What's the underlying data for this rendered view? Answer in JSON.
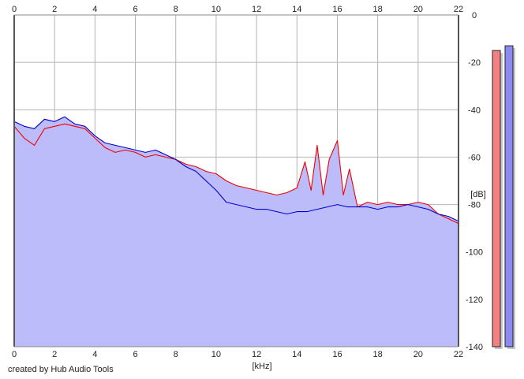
{
  "credit": "created by Hub Audio Tools",
  "colors": {
    "background": "#ffffff",
    "plot_fill": "#bcbcfa",
    "grid": "#b4b4b4",
    "series_a": "#ee0000",
    "series_b": "#0000cc",
    "meter_a": "#f28282",
    "meter_b": "#8a8af0"
  },
  "chart_data": {
    "type": "line",
    "title": "",
    "xlabel": "[kHz]",
    "ylabel": "[dB]",
    "xlim": [
      0,
      22
    ],
    "ylim": [
      -140,
      0
    ],
    "xticks": [
      "0",
      "2",
      "4",
      "6",
      "8",
      "10",
      "12",
      "14",
      "16",
      "18",
      "20",
      "22"
    ],
    "yticks": [
      "0",
      "-20",
      "-40",
      "-60",
      "-80",
      "-100",
      "-120",
      "-140"
    ],
    "grid": true,
    "series": [
      {
        "color": "#ee0000",
        "x": [
          0,
          0.5,
          1,
          1.5,
          2,
          2.5,
          3,
          3.5,
          4,
          4.5,
          5,
          5.5,
          6,
          6.5,
          7,
          7.5,
          8,
          8.5,
          9,
          9.5,
          10,
          10.5,
          11,
          11.5,
          12,
          12.5,
          13,
          13.5,
          14,
          14.4,
          14.7,
          15,
          15.3,
          15.6,
          16,
          16.3,
          16.6,
          17,
          17.5,
          18,
          18.5,
          19,
          19.5,
          20,
          20.5,
          21,
          21.5,
          22
        ],
        "y": [
          -47,
          -52,
          -55,
          -48,
          -47,
          -46,
          -47,
          -48,
          -52,
          -56,
          -58,
          -57,
          -58,
          -60,
          -59,
          -60,
          -61,
          -63,
          -64,
          -66,
          -67,
          -70,
          -72,
          -73,
          -74,
          -75,
          -76,
          -75,
          -73,
          -62,
          -74,
          -55,
          -76,
          -61,
          -53,
          -76,
          -65,
          -81,
          -79,
          -80,
          -79,
          -80,
          -80,
          -79,
          -80,
          -84,
          -86,
          -88
        ]
      },
      {
        "color": "#0000cc",
        "x": [
          0,
          0.5,
          1,
          1.5,
          2,
          2.5,
          3,
          3.5,
          4,
          4.5,
          5,
          5.5,
          6,
          6.5,
          7,
          7.5,
          8,
          8.5,
          9,
          9.5,
          10,
          10.5,
          11,
          11.5,
          12,
          12.5,
          13,
          13.5,
          14,
          14.5,
          15,
          15.5,
          16,
          16.5,
          17,
          17.5,
          18,
          18.5,
          19,
          19.5,
          20,
          20.5,
          21,
          21.5,
          22
        ],
        "y": [
          -45,
          -47,
          -48,
          -44,
          -45,
          -43,
          -46,
          -47,
          -51,
          -54,
          -55,
          -56,
          -57,
          -58,
          -57,
          -59,
          -61,
          -64,
          -66,
          -70,
          -74,
          -79,
          -80,
          -81,
          -82,
          -82,
          -83,
          -84,
          -83,
          -83,
          -82,
          -81,
          -80,
          -81,
          -81,
          -81,
          -82,
          -81,
          -81,
          -80,
          -81,
          -82,
          -84,
          -85,
          -87
        ]
      }
    ],
    "meters": [
      {
        "color": "#f28282",
        "level_db": -15
      },
      {
        "color": "#8a8af0",
        "level_db": -13
      }
    ]
  }
}
